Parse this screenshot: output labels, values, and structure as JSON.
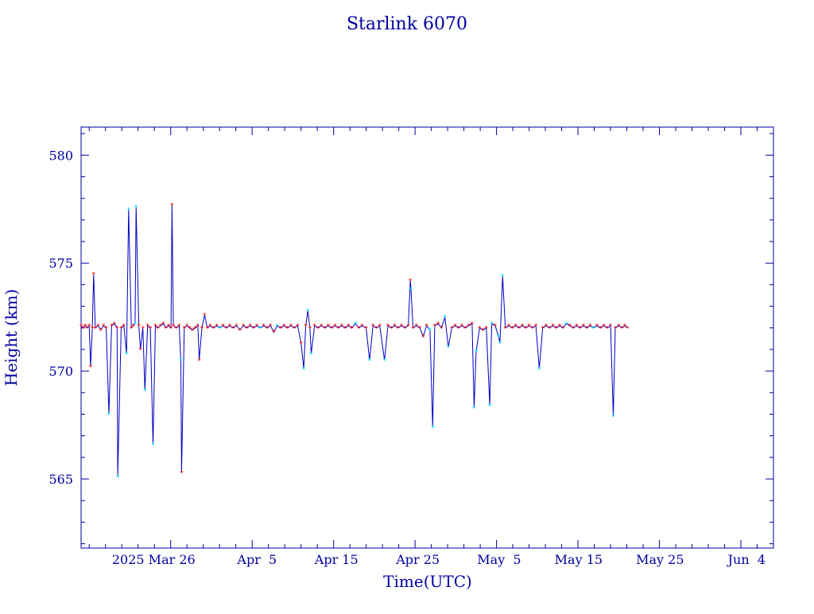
{
  "chart_data": {
    "type": "line",
    "title": "Starlink 6070",
    "xlabel": "Time(UTC)",
    "ylabel": "Height (km)",
    "ylim": [
      561.8,
      581.3
    ],
    "xlim": [
      "2025-03-15",
      "2025-06-08"
    ],
    "y_ticks": [
      565,
      570,
      575,
      580
    ],
    "x_tick_labels": [
      {
        "date": "2025-03-26",
        "label": "2025 Mar 26"
      },
      {
        "date": "2025-04-05",
        "label": "Apr  5"
      },
      {
        "date": "2025-04-15",
        "label": "Apr 15"
      },
      {
        "date": "2025-04-25",
        "label": "Apr 25"
      },
      {
        "date": "2025-05-05",
        "label": "May  5"
      },
      {
        "date": "2025-05-15",
        "label": "May 15"
      },
      {
        "date": "2025-05-25",
        "label": "May 25"
      },
      {
        "date": "2025-06-04",
        "label": "Jun  4"
      }
    ],
    "marker_colors": {
      "red": "#ff0000",
      "cyan": "#00e5ff"
    },
    "line_color": "#0000c0",
    "frame_color": "#0000a0",
    "series": [
      {
        "points": [
          [
            "2025-03-15T00:00",
            572.1,
            "r"
          ],
          [
            "2025-03-15T06:00",
            572.0,
            "r"
          ],
          [
            "2025-03-15T12:00",
            572.1,
            "r"
          ],
          [
            "2025-03-15T18:00",
            572.0,
            "r"
          ],
          [
            "2025-03-16T00:00",
            572.1,
            "r"
          ],
          [
            "2025-03-16T04:00",
            570.2,
            "r"
          ],
          [
            "2025-03-16T09:00",
            572.0,
            "r"
          ],
          [
            "2025-03-16T13:00",
            574.5,
            "r"
          ],
          [
            "2025-03-16T18:00",
            572.0,
            "r"
          ],
          [
            "2025-03-17T02:00",
            572.1,
            "r"
          ],
          [
            "2025-03-17T10:00",
            571.9,
            "r"
          ],
          [
            "2025-03-17T18:00",
            572.1,
            "r"
          ],
          [
            "2025-03-18T02:00",
            572.0,
            "r"
          ],
          [
            "2025-03-18T10:00",
            568.0,
            "c"
          ],
          [
            "2025-03-18T18:00",
            572.1,
            "r"
          ],
          [
            "2025-03-19T02:00",
            572.2,
            "r"
          ],
          [
            "2025-03-19T10:00",
            572.0,
            "r"
          ],
          [
            "2025-03-19T12:00",
            565.1,
            "c"
          ],
          [
            "2025-03-19T22:00",
            572.0,
            "r"
          ],
          [
            "2025-03-20T06:00",
            572.1,
            "r"
          ],
          [
            "2025-03-20T14:00",
            570.8,
            "c"
          ],
          [
            "2025-03-20T20:00",
            577.5,
            "c"
          ],
          [
            "2025-03-21T04:00",
            572.0,
            "r"
          ],
          [
            "2025-03-21T10:00",
            572.1,
            "r"
          ],
          [
            "2025-03-21T15:00",
            572.2,
            "c"
          ],
          [
            "2025-03-21T18:00",
            577.6,
            "c"
          ],
          [
            "2025-03-22T02:00",
            572.1,
            "r"
          ],
          [
            "2025-03-22T07:00",
            571.0,
            "r"
          ],
          [
            "2025-03-22T14:00",
            572.0,
            "r"
          ],
          [
            "2025-03-22T20:00",
            569.1,
            "c"
          ],
          [
            "2025-03-23T04:00",
            572.1,
            "r"
          ],
          [
            "2025-03-23T12:00",
            572.0,
            "r"
          ],
          [
            "2025-03-23T20:00",
            566.6,
            "c"
          ],
          [
            "2025-03-24T03:00",
            572.1,
            "r"
          ],
          [
            "2025-03-24T10:00",
            572.0,
            "r"
          ],
          [
            "2025-03-24T18:00",
            572.1,
            "r"
          ],
          [
            "2025-03-25T02:00",
            572.2,
            "r"
          ],
          [
            "2025-03-25T10:00",
            572.0,
            "r"
          ],
          [
            "2025-03-25T18:00",
            572.1,
            "r"
          ],
          [
            "2025-03-26T01:00",
            572.0,
            "r"
          ],
          [
            "2025-03-26T04:00",
            577.7,
            "r"
          ],
          [
            "2025-03-26T08:00",
            572.1,
            "r"
          ],
          [
            "2025-03-26T16:00",
            572.0,
            "r"
          ],
          [
            "2025-03-27T01:00",
            572.1,
            "r"
          ],
          [
            "2025-03-27T06:00",
            570.5,
            "c"
          ],
          [
            "2025-03-27T08:00",
            565.3,
            "r"
          ],
          [
            "2025-03-27T16:00",
            572.0,
            "r"
          ],
          [
            "2025-03-28T00:00",
            572.1,
            "r"
          ],
          [
            "2025-03-28T08:00",
            572.0,
            "r"
          ],
          [
            "2025-03-28T16:00",
            571.9,
            "r"
          ],
          [
            "2025-03-29T00:00",
            572.0,
            "r"
          ],
          [
            "2025-03-29T08:00",
            572.1,
            "r"
          ],
          [
            "2025-03-29T12:00",
            570.5,
            "r"
          ],
          [
            "2025-03-29T20:00",
            572.0,
            "r"
          ],
          [
            "2025-03-30T04:00",
            572.6,
            "r"
          ],
          [
            "2025-03-30T12:00",
            572.0,
            "r"
          ],
          [
            "2025-03-30T20:00",
            572.1,
            "r"
          ],
          [
            "2025-03-31T06:00",
            572.0,
            "r"
          ],
          [
            "2025-03-31T16:00",
            572.1,
            "r"
          ],
          [
            "2025-04-01T00:00",
            572.0,
            "c"
          ],
          [
            "2025-04-01T10:00",
            572.1,
            "r"
          ],
          [
            "2025-04-01T20:00",
            572.0,
            "r"
          ],
          [
            "2025-04-02T06:00",
            572.1,
            "r"
          ],
          [
            "2025-04-02T16:00",
            572.0,
            "r"
          ],
          [
            "2025-04-03T02:00",
            572.1,
            "r"
          ],
          [
            "2025-04-03T12:00",
            571.9,
            "r"
          ],
          [
            "2025-04-03T22:00",
            572.1,
            "r"
          ],
          [
            "2025-04-04T08:00",
            572.0,
            "r"
          ],
          [
            "2025-04-04T18:00",
            572.1,
            "r"
          ],
          [
            "2025-04-05T04:00",
            572.0,
            "r"
          ],
          [
            "2025-04-05T14:00",
            572.1,
            "r"
          ],
          [
            "2025-04-06T00:00",
            572.0,
            "c"
          ],
          [
            "2025-04-06T10:00",
            572.1,
            "r"
          ],
          [
            "2025-04-06T20:00",
            572.0,
            "r"
          ],
          [
            "2025-04-07T06:00",
            572.1,
            "r"
          ],
          [
            "2025-04-07T16:00",
            571.8,
            "r"
          ],
          [
            "2025-04-08T02:00",
            572.1,
            "c"
          ],
          [
            "2025-04-08T12:00",
            572.0,
            "r"
          ],
          [
            "2025-04-08T22:00",
            572.1,
            "r"
          ],
          [
            "2025-04-09T08:00",
            572.0,
            "r"
          ],
          [
            "2025-04-09T18:00",
            572.1,
            "r"
          ],
          [
            "2025-04-10T04:00",
            572.0,
            "r"
          ],
          [
            "2025-04-10T14:00",
            572.1,
            "r"
          ],
          [
            "2025-04-11T00:00",
            571.3,
            "r"
          ],
          [
            "2025-04-11T08:00",
            570.1,
            "c"
          ],
          [
            "2025-04-11T14:00",
            572.1,
            "r"
          ],
          [
            "2025-04-11T20:00",
            572.8,
            "c"
          ],
          [
            "2025-04-12T02:00",
            572.0,
            "r"
          ],
          [
            "2025-04-12T06:00",
            570.8,
            "c"
          ],
          [
            "2025-04-12T16:00",
            572.1,
            "r"
          ],
          [
            "2025-04-13T02:00",
            572.0,
            "r"
          ],
          [
            "2025-04-13T12:00",
            572.1,
            "r"
          ],
          [
            "2025-04-13T22:00",
            572.0,
            "r"
          ],
          [
            "2025-04-14T08:00",
            572.1,
            "r"
          ],
          [
            "2025-04-14T18:00",
            572.0,
            "r"
          ],
          [
            "2025-04-15T04:00",
            572.1,
            "r"
          ],
          [
            "2025-04-15T14:00",
            572.0,
            "r"
          ],
          [
            "2025-04-16T00:00",
            572.1,
            "r"
          ],
          [
            "2025-04-16T10:00",
            572.0,
            "r"
          ],
          [
            "2025-04-16T20:00",
            572.1,
            "r"
          ],
          [
            "2025-04-17T06:00",
            572.0,
            "r"
          ],
          [
            "2025-04-17T16:00",
            572.2,
            "c"
          ],
          [
            "2025-04-18T02:00",
            572.0,
            "r"
          ],
          [
            "2025-04-18T12:00",
            572.1,
            "r"
          ],
          [
            "2025-04-19T00:00",
            572.0,
            "r"
          ],
          [
            "2025-04-19T10:00",
            570.5,
            "c"
          ],
          [
            "2025-04-19T20:00",
            572.1,
            "r"
          ],
          [
            "2025-04-20T06:00",
            572.0,
            "r"
          ],
          [
            "2025-04-20T16:00",
            572.1,
            "r"
          ],
          [
            "2025-04-21T06:00",
            570.5,
            "c"
          ],
          [
            "2025-04-21T16:00",
            572.1,
            "r"
          ],
          [
            "2025-04-22T02:00",
            572.0,
            "r"
          ],
          [
            "2025-04-22T12:00",
            572.1,
            "r"
          ],
          [
            "2025-04-22T22:00",
            572.0,
            "r"
          ],
          [
            "2025-04-23T08:00",
            572.1,
            "r"
          ],
          [
            "2025-04-23T18:00",
            572.0,
            "r"
          ],
          [
            "2025-04-24T04:00",
            572.1,
            "r"
          ],
          [
            "2025-04-24T10:00",
            574.2,
            "r"
          ],
          [
            "2025-04-24T12:00",
            573.8,
            "c"
          ],
          [
            "2025-04-24T18:00",
            572.0,
            "r"
          ],
          [
            "2025-04-25T04:00",
            572.1,
            "r"
          ],
          [
            "2025-04-25T14:00",
            572.0,
            "r"
          ],
          [
            "2025-04-26T00:00",
            571.6,
            "r"
          ],
          [
            "2025-04-26T10:00",
            572.1,
            "r"
          ],
          [
            "2025-04-26T20:00",
            571.9,
            "c"
          ],
          [
            "2025-04-27T04:00",
            567.4,
            "c"
          ],
          [
            "2025-04-27T10:00",
            572.1,
            "r"
          ],
          [
            "2025-04-27T20:00",
            572.2,
            "r"
          ],
          [
            "2025-04-28T06:00",
            572.0,
            "r"
          ],
          [
            "2025-04-28T16:00",
            572.5,
            "c"
          ],
          [
            "2025-04-29T02:00",
            571.1,
            "c"
          ],
          [
            "2025-04-29T12:00",
            572.0,
            "r"
          ],
          [
            "2025-04-29T22:00",
            572.1,
            "r"
          ],
          [
            "2025-04-30T08:00",
            572.0,
            "r"
          ],
          [
            "2025-04-30T18:00",
            572.1,
            "r"
          ],
          [
            "2025-05-01T04:00",
            572.0,
            "r"
          ],
          [
            "2025-05-01T14:00",
            572.1,
            "r"
          ],
          [
            "2025-05-02T00:00",
            572.2,
            "r"
          ],
          [
            "2025-05-02T06:00",
            568.3,
            "c"
          ],
          [
            "2025-05-02T12:00",
            570.9,
            "c"
          ],
          [
            "2025-05-02T22:00",
            572.0,
            "r"
          ],
          [
            "2025-05-03T08:00",
            571.9,
            "r"
          ],
          [
            "2025-05-03T18:00",
            572.0,
            "r"
          ],
          [
            "2025-05-04T04:00",
            568.4,
            "c"
          ],
          [
            "2025-05-04T10:00",
            572.2,
            "c"
          ],
          [
            "2025-05-04T20:00",
            572.1,
            "r"
          ],
          [
            "2025-05-05T06:00",
            571.6,
            "c"
          ],
          [
            "2025-05-05T10:00",
            571.3,
            "c"
          ],
          [
            "2025-05-05T18:00",
            574.4,
            "c"
          ],
          [
            "2025-05-06T02:00",
            572.0,
            "r"
          ],
          [
            "2025-05-06T12:00",
            572.1,
            "r"
          ],
          [
            "2025-05-06T22:00",
            572.0,
            "r"
          ],
          [
            "2025-05-07T08:00",
            572.1,
            "r"
          ],
          [
            "2025-05-07T18:00",
            572.0,
            "r"
          ],
          [
            "2025-05-08T04:00",
            572.1,
            "r"
          ],
          [
            "2025-05-08T14:00",
            572.0,
            "r"
          ],
          [
            "2025-05-09T00:00",
            572.1,
            "r"
          ],
          [
            "2025-05-09T10:00",
            572.0,
            "r"
          ],
          [
            "2025-05-09T20:00",
            572.1,
            "r"
          ],
          [
            "2025-05-10T06:00",
            570.1,
            "c"
          ],
          [
            "2025-05-10T16:00",
            572.0,
            "r"
          ],
          [
            "2025-05-11T02:00",
            572.1,
            "r"
          ],
          [
            "2025-05-11T12:00",
            572.0,
            "r"
          ],
          [
            "2025-05-11T22:00",
            572.1,
            "r"
          ],
          [
            "2025-05-12T08:00",
            572.0,
            "r"
          ],
          [
            "2025-05-12T18:00",
            572.1,
            "r"
          ],
          [
            "2025-05-13T04:00",
            572.0,
            "r"
          ],
          [
            "2025-05-13T14:00",
            572.2,
            "c"
          ],
          [
            "2025-05-14T00:00",
            572.1,
            "r"
          ],
          [
            "2025-05-14T10:00",
            572.0,
            "r"
          ],
          [
            "2025-05-14T20:00",
            572.1,
            "r"
          ],
          [
            "2025-05-15T06:00",
            572.0,
            "r"
          ],
          [
            "2025-05-15T16:00",
            572.1,
            "r"
          ],
          [
            "2025-05-16T02:00",
            572.0,
            "r"
          ],
          [
            "2025-05-16T12:00",
            572.1,
            "r"
          ],
          [
            "2025-05-16T22:00",
            572.0,
            "c"
          ],
          [
            "2025-05-17T08:00",
            572.1,
            "r"
          ],
          [
            "2025-05-17T18:00",
            572.0,
            "r"
          ],
          [
            "2025-05-18T04:00",
            572.1,
            "r"
          ],
          [
            "2025-05-18T14:00",
            572.0,
            "r"
          ],
          [
            "2025-05-19T00:00",
            572.1,
            "r"
          ],
          [
            "2025-05-19T08:00",
            567.9,
            "c"
          ],
          [
            "2025-05-19T14:00",
            572.0,
            "r"
          ],
          [
            "2025-05-20T00:00",
            572.1,
            "r"
          ],
          [
            "2025-05-20T10:00",
            572.0,
            "r"
          ],
          [
            "2025-05-20T18:00",
            572.1,
            "r"
          ],
          [
            "2025-05-21T02:00",
            572.0,
            "r"
          ]
        ]
      }
    ]
  }
}
